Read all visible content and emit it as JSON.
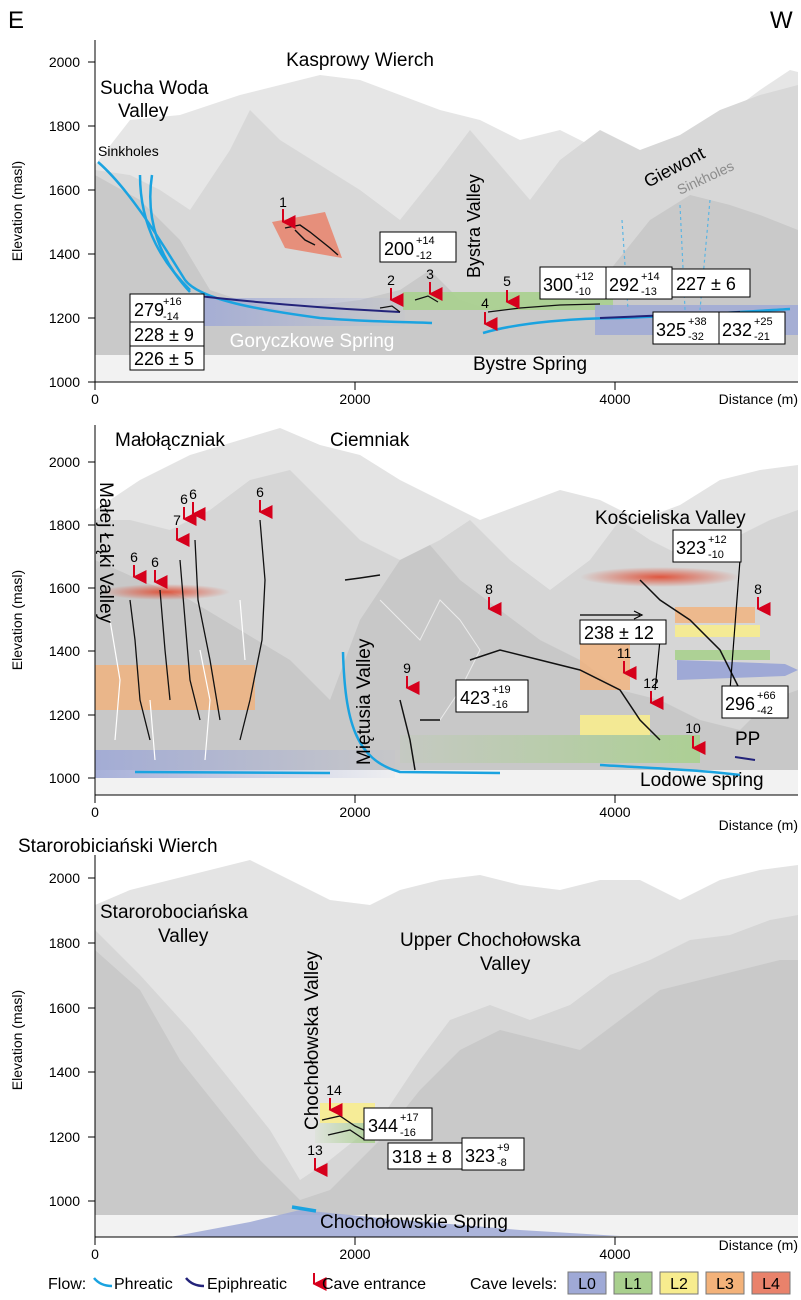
{
  "orientation": {
    "east": "E",
    "west": "W"
  },
  "axis_label_y": "Elevation (masl)",
  "axis_label_x": "Distance (m)",
  "colors": {
    "terrain_far": "#e4e4e4",
    "terrain_mid": "#d4d4d4",
    "terrain_front": "#c6c6c6",
    "phreatic": "#1aa3e0",
    "epiphreatic": "#23237a",
    "entrance": "#d6001c",
    "L0": "#9fa9d6",
    "L1": "#a9d08e",
    "L2": "#f7ec8e",
    "L3": "#f3b27a",
    "L4": "#e9826b"
  },
  "panels": [
    {
      "id": "top",
      "y_ticks": [
        "2000",
        "1800",
        "1600",
        "1400",
        "1200",
        "1000"
      ],
      "x_ticks": [
        "0",
        "2000",
        "4000"
      ],
      "labels": {
        "peak": "Kasprowy Wierch",
        "valley_left_1": "Sucha Woda",
        "valley_left_2": "Valley",
        "sinkholes_left": "Sinkholes",
        "bystra_valley": "Bystra Valley",
        "giewont": "Giewont",
        "sinkholes_right": "Sinkholes",
        "spring_1": "Goryczkowe Spring",
        "spring_2": "Bystre Spring"
      },
      "entrances": [
        "1",
        "2",
        "3",
        "4",
        "5"
      ],
      "ages": {
        "a_value": "279",
        "a_plus": "+16",
        "a_minus": "-14",
        "b": "228 ± 9",
        "c": "226 ± 5",
        "d_value": "200",
        "d_plus": "+14",
        "d_minus": "-12",
        "e_value": "300",
        "e_plus": "+12",
        "e_minus": "-10",
        "f_value": "292",
        "f_plus": "+14",
        "f_minus": "-13",
        "g": "227 ± 6",
        "h_value": "325",
        "h_plus": "+38",
        "h_minus": "-32",
        "i_value": "232",
        "i_plus": "+25",
        "i_minus": "-21"
      }
    },
    {
      "id": "middle",
      "y_ticks": [
        "2000",
        "1800",
        "1600",
        "1400",
        "1200",
        "1000"
      ],
      "x_ticks": [
        "0",
        "2000",
        "4000"
      ],
      "labels": {
        "peak_1": "Małołączniak",
        "peak_2": "Ciemniak",
        "valley_left": "Małej Łąki Valley",
        "valley_mid": "Miętusia Valley",
        "valley_right": "Kościeliska Valley",
        "pp": "PP",
        "spring": "Lodowe spring"
      },
      "entrances": [
        "6",
        "6",
        "6",
        "6",
        "7",
        "6",
        "8",
        "9",
        "11",
        "12",
        "10",
        "8"
      ],
      "ages": {
        "a": "238 ± 12",
        "b_value": "423",
        "b_plus": "+19",
        "b_minus": "-16",
        "c_value": "323",
        "c_plus": "+12",
        "c_minus": "-10",
        "d_value": "296",
        "d_plus": "+66",
        "d_minus": "-42"
      }
    },
    {
      "id": "bottom",
      "y_ticks": [
        "2000",
        "1800",
        "1600",
        "1400",
        "1200",
        "1000"
      ],
      "x_ticks": [
        "0",
        "2000",
        "4000"
      ],
      "labels": {
        "peak": "Starorobiciański Wierch",
        "valley_left_1": "Starorobociańska",
        "valley_left_2": "Valley",
        "valley_mid": "Chochołowska Valley",
        "valley_right_1": "Upper Chochołowska",
        "valley_right_2": "Valley",
        "spring": "Chochołowskie Spring"
      },
      "entrances": [
        "13",
        "14"
      ],
      "ages": {
        "a_value": "344",
        "a_plus": "+17",
        "a_minus": "-16",
        "b": "318 ± 8",
        "c_value": "323",
        "c_plus": "+9",
        "c_minus": "-8"
      }
    }
  ],
  "legend": {
    "flow_label": "Flow:",
    "phreatic": "Phreatic",
    "epiphreatic": "Epiphreatic",
    "cave_entrance": "Cave entrance",
    "cave_levels_label": "Cave levels:",
    "levels": [
      "L0",
      "L1",
      "L2",
      "L3",
      "L4"
    ]
  }
}
